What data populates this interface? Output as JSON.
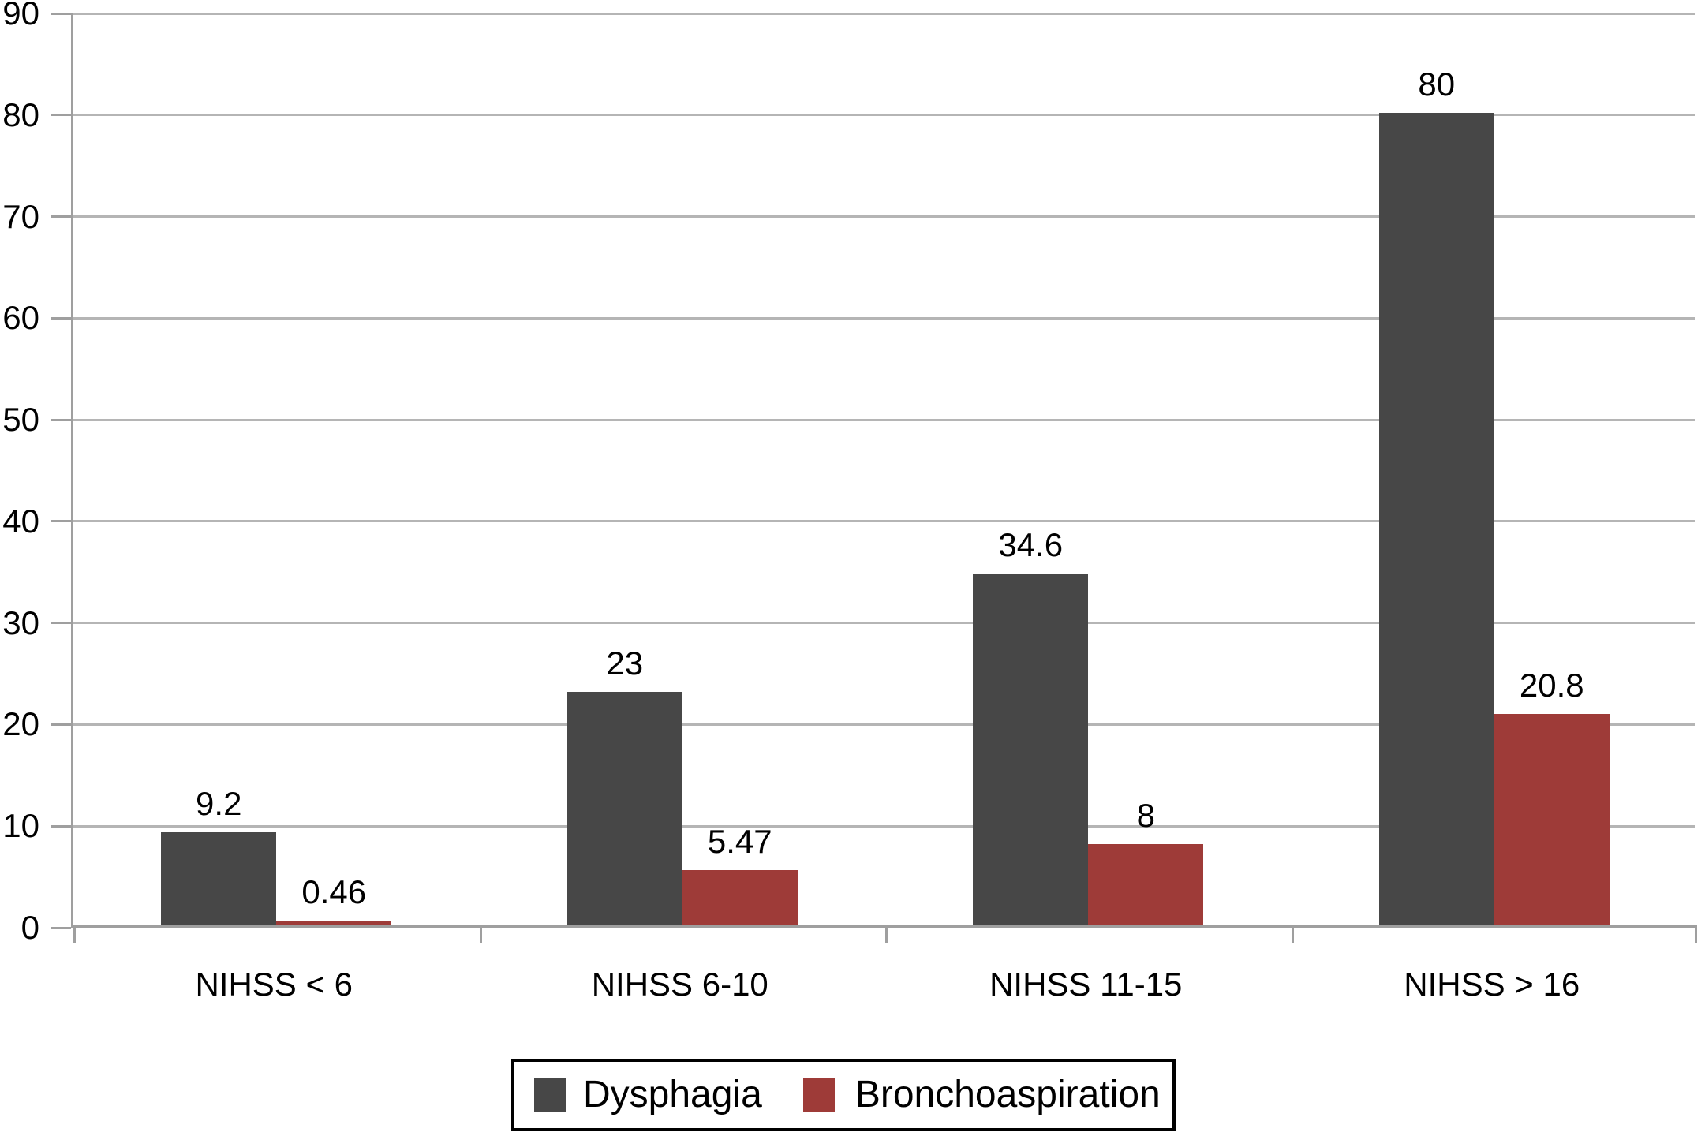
{
  "chart_data": {
    "type": "bar",
    "categories": [
      "NIHSS < 6",
      "NIHSS 6-10",
      "NIHSS 11-15",
      "NIHSS > 16"
    ],
    "series": [
      {
        "name": "Dysphagia",
        "color": "#474747",
        "values": [
          9.2,
          23,
          34.6,
          80
        ],
        "labels": [
          "9.2",
          "23",
          "34.6",
          "80"
        ]
      },
      {
        "name": "Bronchoaspiration",
        "color": "#9e3b38",
        "values": [
          0.46,
          5.47,
          8,
          20.8
        ],
        "labels": [
          "0.46",
          "5.47",
          "8",
          "20.8"
        ]
      }
    ],
    "title": "",
    "xlabel": "",
    "ylabel": "",
    "ylim": [
      0,
      90
    ],
    "ytick_step": 10,
    "yticks": [
      "0",
      "10",
      "20",
      "30",
      "40",
      "50",
      "60",
      "70",
      "80",
      "90"
    ],
    "grid": true,
    "legend_position": "bottom",
    "gridline_color": "#b5b5b5",
    "axis_color": "#9f9f9f",
    "tick_color": "#9f9f9f",
    "background_color": "#ffffff",
    "text_color": "#000000"
  }
}
